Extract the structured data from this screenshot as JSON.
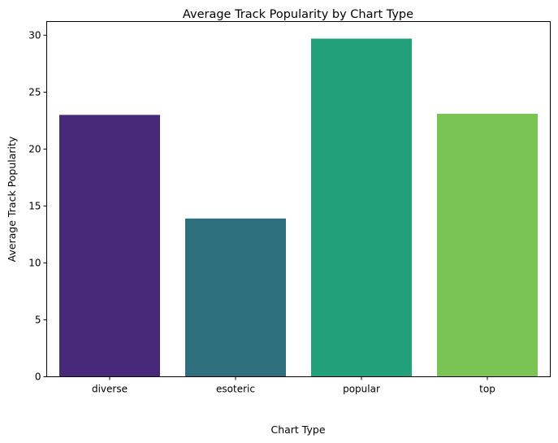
{
  "chart_data": {
    "type": "bar",
    "title": "Average Track Popularity by Chart Type",
    "xlabel": "Chart Type",
    "ylabel": "Average Track Popularity",
    "categories": [
      "diverse",
      "esoteric",
      "popular",
      "top"
    ],
    "values": [
      23.0,
      13.9,
      29.7,
      23.1
    ],
    "colors": [
      "#482878",
      "#2e6f7e",
      "#22a07a",
      "#7ac454"
    ],
    "ylim": [
      0,
      31.2
    ],
    "yticks": [
      0,
      5,
      10,
      15,
      20,
      25,
      30
    ],
    "grid": false,
    "legend": "none"
  }
}
